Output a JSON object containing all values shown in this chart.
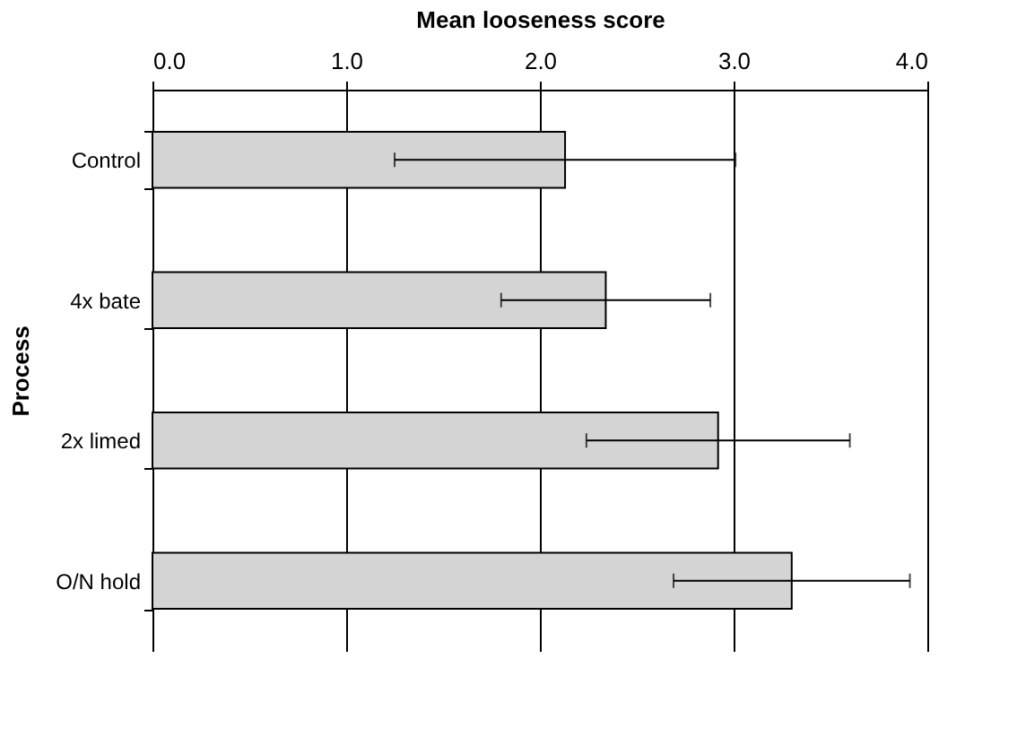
{
  "chart_data": {
    "type": "bar",
    "orientation": "horizontal",
    "xlabel": "Mean looseness score",
    "ylabel": "Process",
    "categories": [
      "Control",
      "4x bate",
      "2x limed",
      "O/N hold"
    ],
    "values": [
      2.13,
      2.34,
      2.92,
      3.3
    ],
    "errors": [
      0.88,
      0.54,
      0.68,
      0.61
    ],
    "color": "#d4d4d4",
    "xlim": [
      0,
      4
    ],
    "xticks": [
      {
        "value": 0,
        "label": "0.0"
      },
      {
        "value": 1,
        "label": "1.0"
      },
      {
        "value": 2,
        "label": "2.0"
      },
      {
        "value": 3,
        "label": "3.0"
      },
      {
        "value": 4,
        "label": "4.0"
      }
    ],
    "grid": "x"
  }
}
